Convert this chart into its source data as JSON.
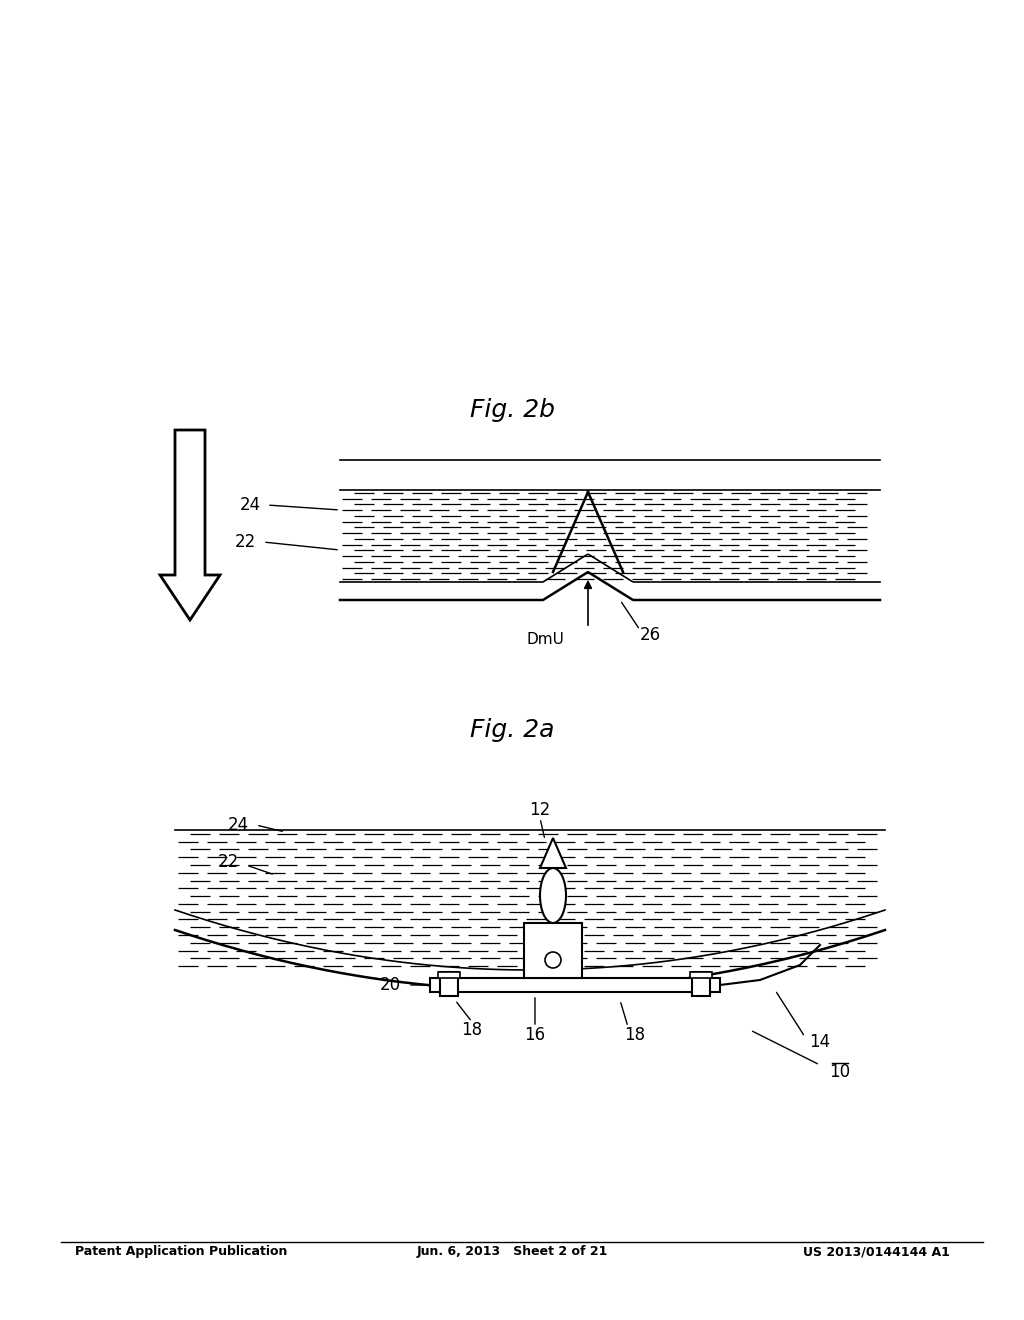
{
  "bg_color": "#ffffff",
  "header_left": "Patent Application Publication",
  "header_mid": "Jun. 6, 2013   Sheet 2 of 21",
  "header_right": "US 2013/0144144 A1",
  "fig2a_caption": "Fig. 2a",
  "fig2b_caption": "Fig. 2b"
}
